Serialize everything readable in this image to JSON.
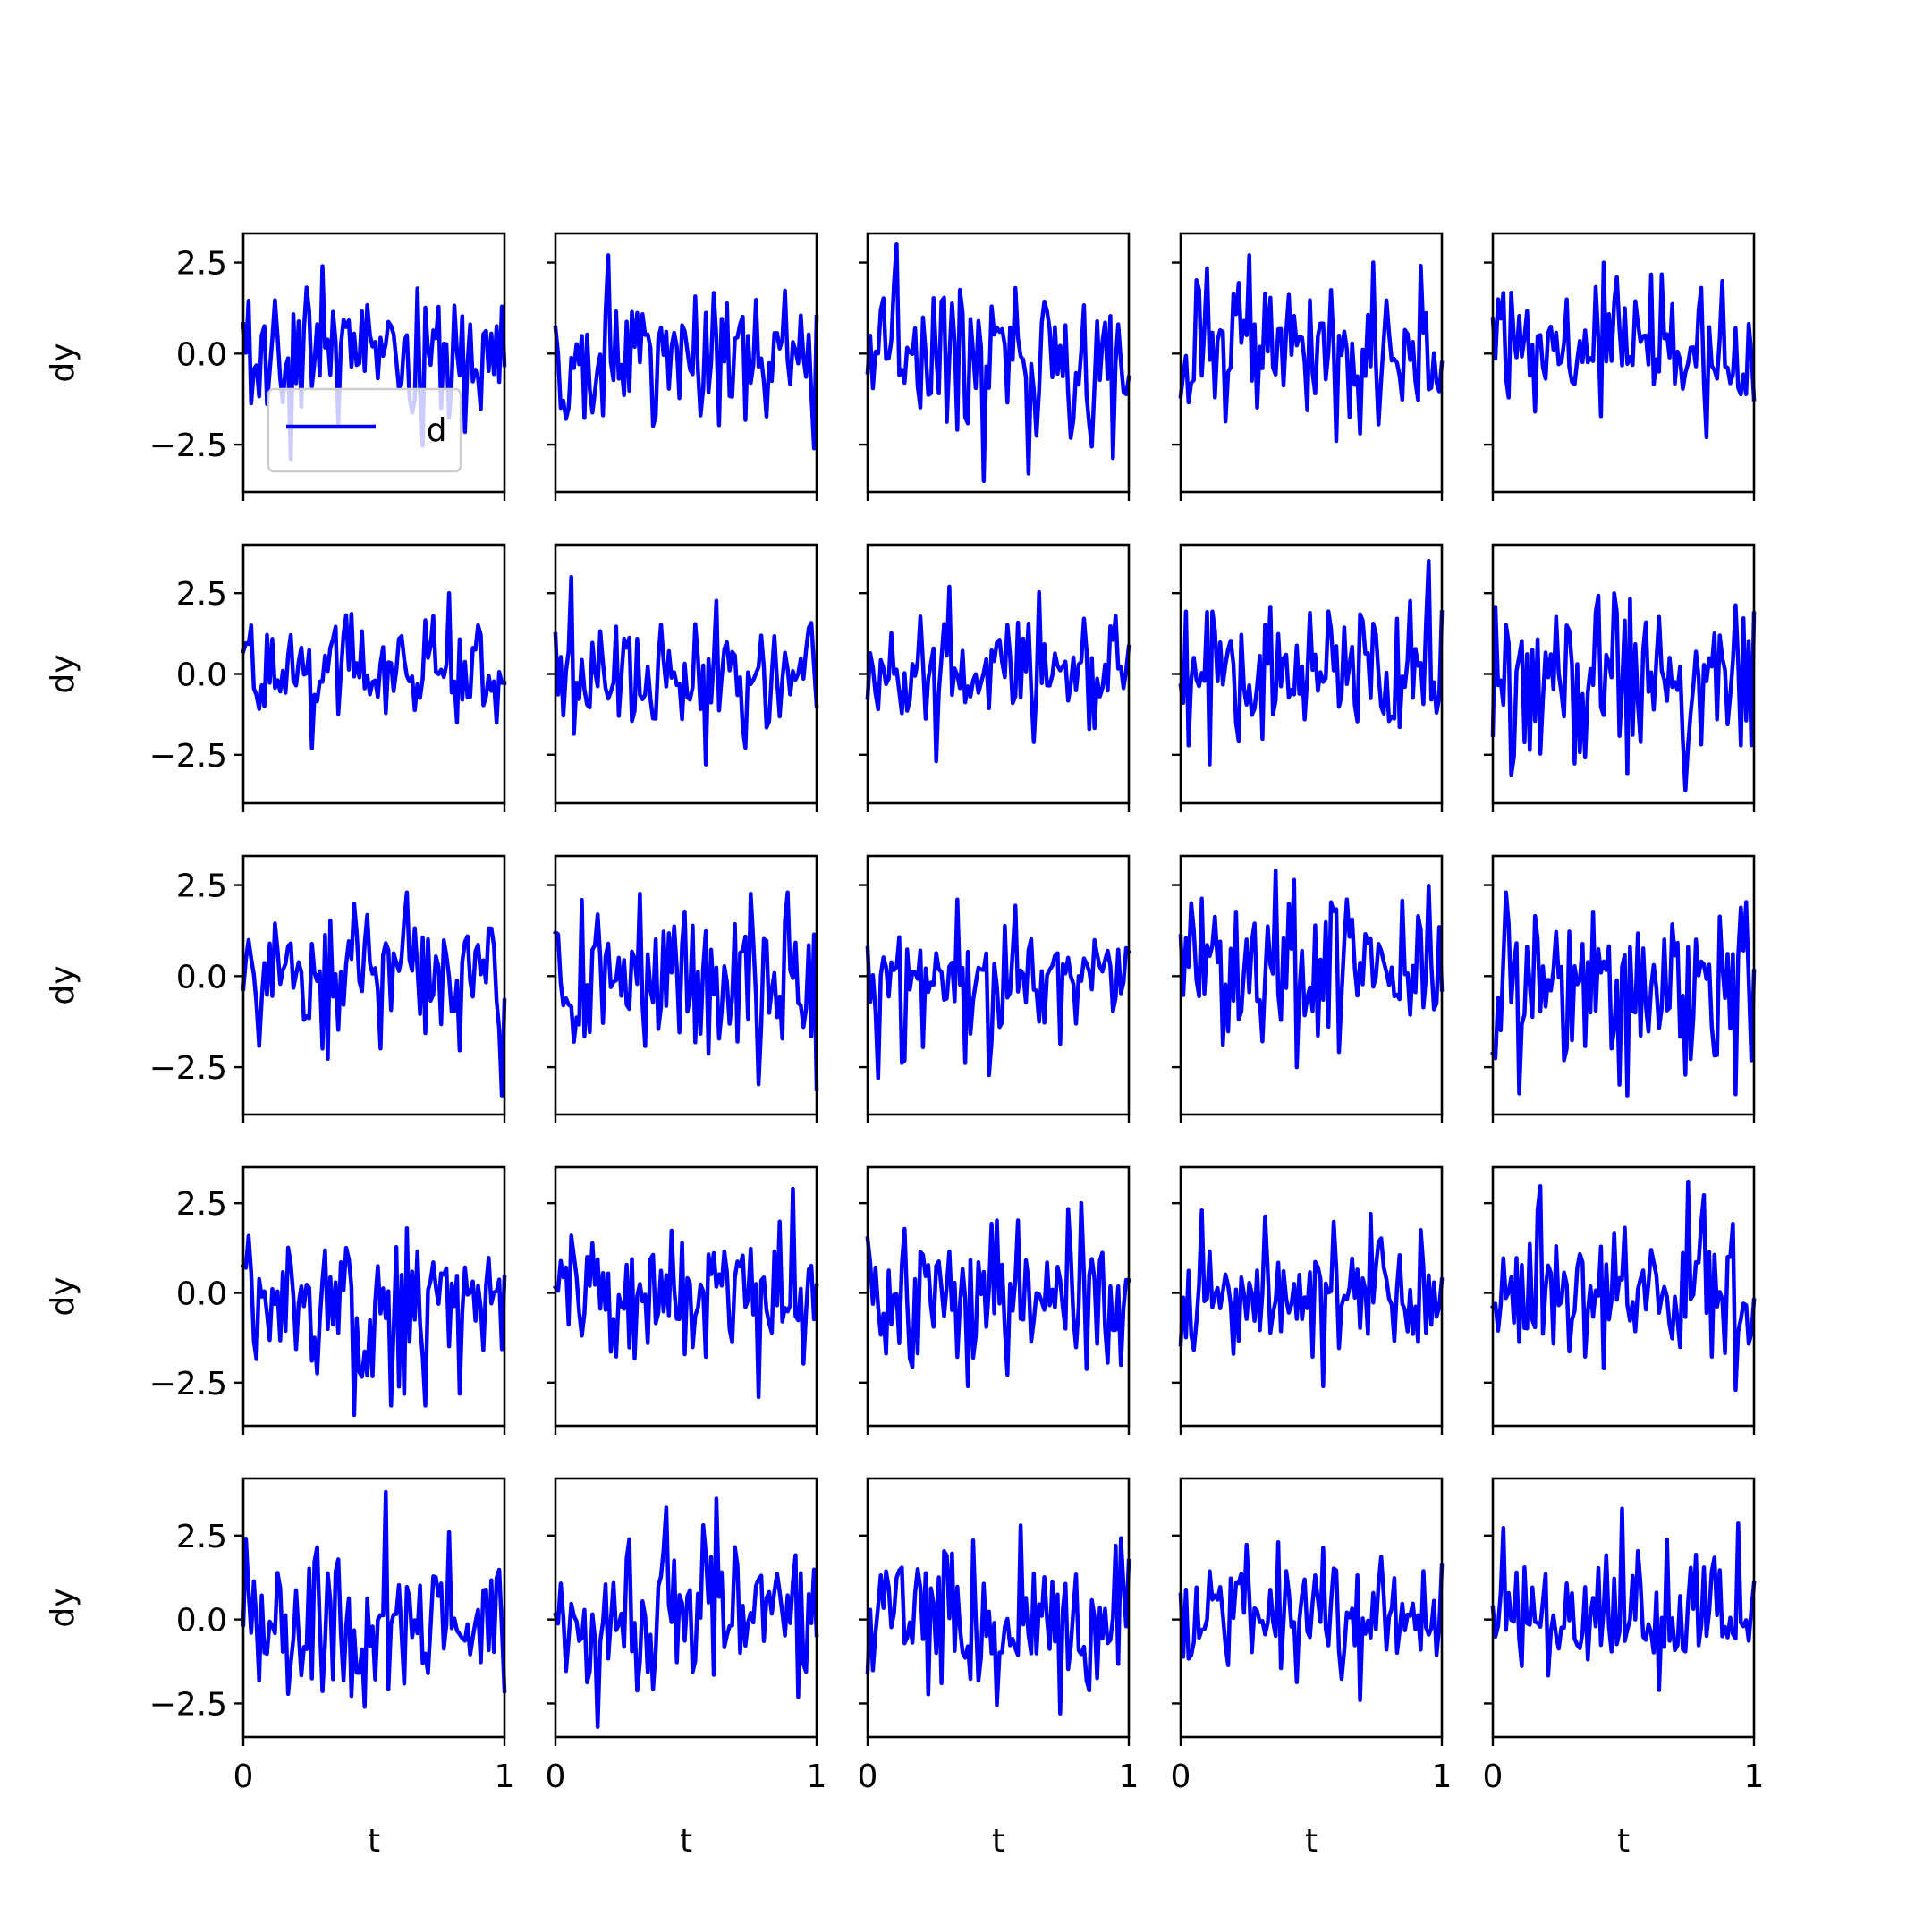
{
  "chart_data": {
    "type": "line",
    "layout": "5x5 grid of subplots with shared x and y axes",
    "xlabel": "t",
    "ylabel": "dy",
    "xlim": [
      0,
      1
    ],
    "xticks": [
      0,
      1
    ],
    "xtick_labels": [
      "0",
      "1"
    ],
    "yticks": [
      -2.5,
      0.0,
      2.5
    ],
    "ytick_labels": [
      "−2.5",
      "0.0",
      "2.5"
    ],
    "row_ylims": [
      [
        -3.8,
        3.3
      ],
      [
        -4.0,
        4.0
      ],
      [
        -3.8,
        3.3
      ],
      [
        -3.7,
        3.5
      ],
      [
        -3.5,
        4.2
      ]
    ],
    "grid": false,
    "legend": {
      "subplot": [
        0,
        0
      ],
      "position": "lower left",
      "entries": [
        {
          "label": "d",
          "color": "#0000ff"
        }
      ]
    },
    "series_color": "#0000ff",
    "points_per_series": 100,
    "series_description": "Each of the 25 panels plots one noisy series dy(t) for t from 0 to 1, fluctuating around 0 with typical spread about ±1 and occasional spikes near ±3.",
    "subplots": [
      {
        "row": 0,
        "col": 0,
        "ymin_approx": -2.9,
        "ymax_approx": 2.4
      },
      {
        "row": 0,
        "col": 1,
        "ymin_approx": -2.6,
        "ymax_approx": 2.7
      },
      {
        "row": 0,
        "col": 2,
        "ymin_approx": -3.5,
        "ymax_approx": 3.0
      },
      {
        "row": 0,
        "col": 3,
        "ymin_approx": -2.4,
        "ymax_approx": 2.7
      },
      {
        "row": 0,
        "col": 4,
        "ymin_approx": -2.3,
        "ymax_approx": 2.5
      },
      {
        "row": 1,
        "col": 0,
        "ymin_approx": -2.3,
        "ymax_approx": 2.5
      },
      {
        "row": 1,
        "col": 1,
        "ymin_approx": -2.8,
        "ymax_approx": 3.0
      },
      {
        "row": 1,
        "col": 2,
        "ymin_approx": -2.7,
        "ymax_approx": 2.7
      },
      {
        "row": 1,
        "col": 3,
        "ymin_approx": -2.8,
        "ymax_approx": 3.5
      },
      {
        "row": 1,
        "col": 4,
        "ymin_approx": -3.6,
        "ymax_approx": 2.5
      },
      {
        "row": 2,
        "col": 0,
        "ymin_approx": -3.3,
        "ymax_approx": 2.3
      },
      {
        "row": 2,
        "col": 1,
        "ymin_approx": -3.1,
        "ymax_approx": 2.3
      },
      {
        "row": 2,
        "col": 2,
        "ymin_approx": -2.8,
        "ymax_approx": 2.1
      },
      {
        "row": 2,
        "col": 3,
        "ymin_approx": -2.5,
        "ymax_approx": 2.9
      },
      {
        "row": 2,
        "col": 4,
        "ymin_approx": -3.3,
        "ymax_approx": 2.3
      },
      {
        "row": 3,
        "col": 0,
        "ymin_approx": -3.4,
        "ymax_approx": 1.8
      },
      {
        "row": 3,
        "col": 1,
        "ymin_approx": -2.9,
        "ymax_approx": 2.9
      },
      {
        "row": 3,
        "col": 2,
        "ymin_approx": -2.6,
        "ymax_approx": 2.5
      },
      {
        "row": 3,
        "col": 3,
        "ymin_approx": -2.6,
        "ymax_approx": 2.3
      },
      {
        "row": 3,
        "col": 4,
        "ymin_approx": -2.7,
        "ymax_approx": 3.1
      },
      {
        "row": 4,
        "col": 0,
        "ymin_approx": -2.6,
        "ymax_approx": 3.8
      },
      {
        "row": 4,
        "col": 1,
        "ymin_approx": -3.2,
        "ymax_approx": 3.6
      },
      {
        "row": 4,
        "col": 2,
        "ymin_approx": -2.8,
        "ymax_approx": 2.8
      },
      {
        "row": 4,
        "col": 3,
        "ymin_approx": -2.4,
        "ymax_approx": 2.3
      },
      {
        "row": 4,
        "col": 4,
        "ymin_approx": -2.1,
        "ymax_approx": 3.3
      }
    ]
  }
}
